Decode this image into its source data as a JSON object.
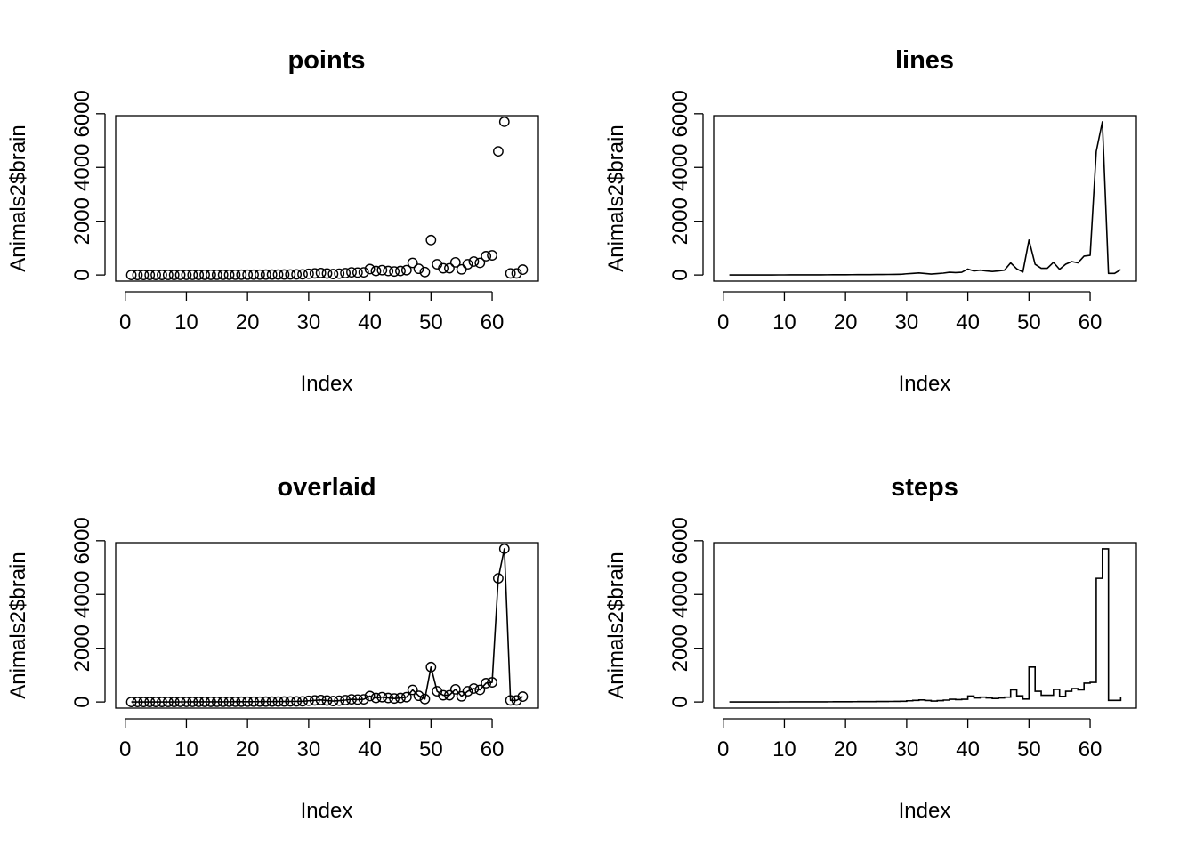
{
  "chart_data": [
    {
      "type": "scatter",
      "title": "points",
      "xlabel": "Index",
      "ylabel": "Animals2$brain",
      "xlim": [
        0,
        65
      ],
      "ylim": [
        0,
        6000
      ],
      "xticks": [
        "0",
        "10",
        "20",
        "30",
        "40",
        "50",
        "60"
      ],
      "yticks": [
        "0",
        "2000",
        "4000",
        "6000"
      ],
      "plot_type": "p"
    },
    {
      "type": "line",
      "title": "lines",
      "xlabel": "Index",
      "ylabel": "Animals2$brain",
      "xlim": [
        0,
        65
      ],
      "ylim": [
        0,
        6000
      ],
      "xticks": [
        "0",
        "10",
        "20",
        "30",
        "40",
        "50",
        "60"
      ],
      "yticks": [
        "0",
        "2000",
        "4000",
        "6000"
      ],
      "plot_type": "l"
    },
    {
      "type": "line",
      "title": "overlaid",
      "xlabel": "Index",
      "ylabel": "Animals2$brain",
      "xlim": [
        0,
        65
      ],
      "ylim": [
        0,
        6000
      ],
      "xticks": [
        "0",
        "10",
        "20",
        "30",
        "40",
        "50",
        "60"
      ],
      "yticks": [
        "0",
        "2000",
        "4000",
        "6000"
      ],
      "plot_type": "o"
    },
    {
      "type": "line",
      "title": "steps",
      "xlabel": "Index",
      "ylabel": "Animals2$brain",
      "xlim": [
        0,
        65
      ],
      "ylim": [
        0,
        6000
      ],
      "xticks": [
        "0",
        "10",
        "20",
        "30",
        "40",
        "50",
        "60"
      ],
      "yticks": [
        "0",
        "2000",
        "4000",
        "6000"
      ],
      "plot_type": "s"
    }
  ],
  "series": {
    "x": [
      1,
      2,
      3,
      4,
      5,
      6,
      7,
      8,
      9,
      10,
      11,
      12,
      13,
      14,
      15,
      16,
      17,
      18,
      19,
      20,
      21,
      22,
      23,
      24,
      25,
      26,
      27,
      28,
      29,
      30,
      31,
      32,
      33,
      34,
      35,
      36,
      37,
      38,
      39,
      40,
      41,
      42,
      43,
      44,
      45,
      46,
      47,
      48,
      49,
      50,
      51,
      52,
      53,
      54,
      55,
      56,
      57,
      58,
      59,
      60,
      61,
      62,
      63,
      64,
      65
    ],
    "y": [
      0,
      1,
      1,
      1,
      2,
      2,
      3,
      3,
      4,
      4,
      5,
      5,
      6,
      6,
      7,
      7,
      8,
      9,
      10,
      11,
      12,
      13,
      14,
      15,
      17,
      18,
      20,
      22,
      25,
      45,
      60,
      75,
      55,
      35,
      50,
      70,
      100,
      90,
      100,
      220,
      150,
      180,
      150,
      130,
      150,
      180,
      450,
      230,
      110,
      1300,
      400,
      250,
      250,
      470,
      210,
      400,
      500,
      450,
      700,
      730,
      4600,
      5700,
      60,
      60,
      200
    ]
  }
}
